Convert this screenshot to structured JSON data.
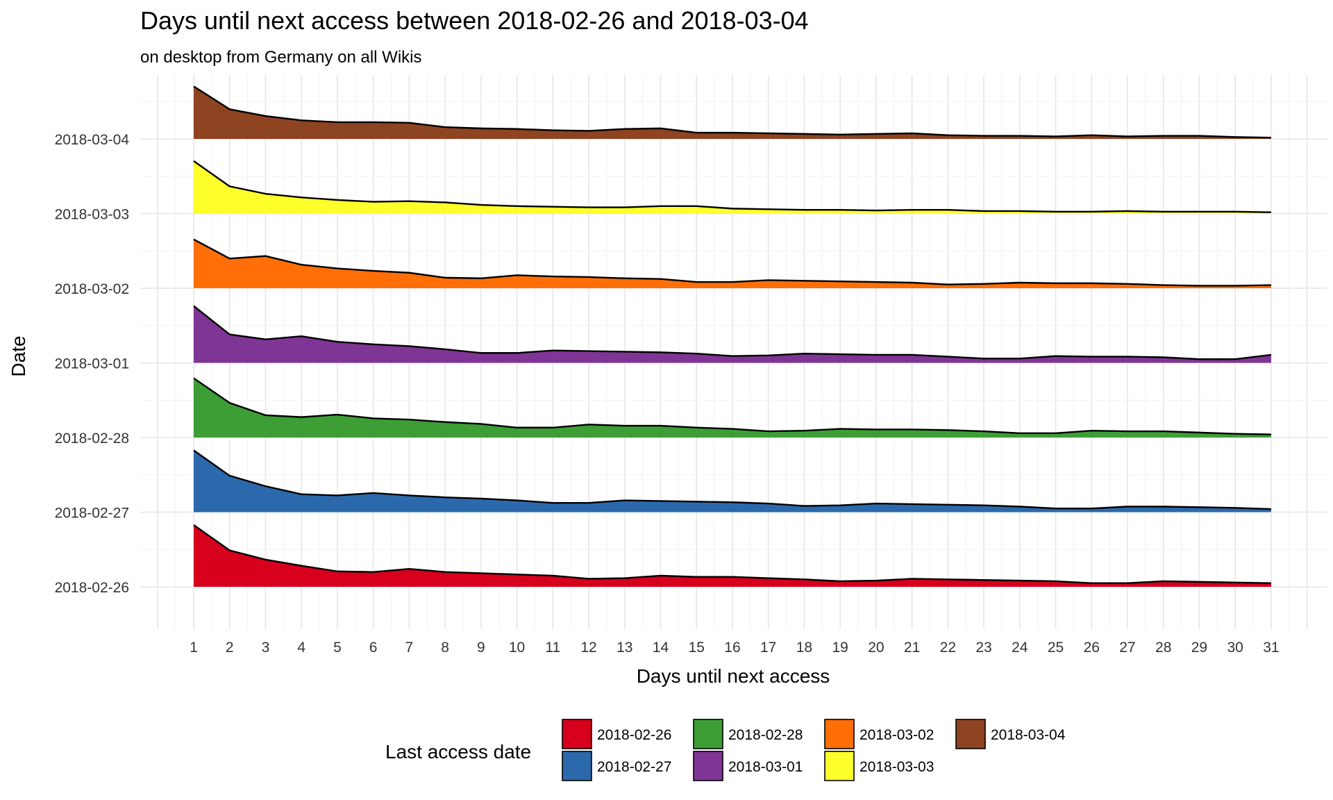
{
  "chart_data": {
    "type": "area",
    "title": "Days until next access between 2018-02-26 and 2018-03-04",
    "subtitle": "on desktop from Germany on all Wikis",
    "xlabel": "Days until next access",
    "ylabel": "Date",
    "x": [
      1,
      2,
      3,
      4,
      5,
      6,
      7,
      8,
      9,
      10,
      11,
      12,
      13,
      14,
      15,
      16,
      17,
      18,
      19,
      20,
      21,
      22,
      23,
      24,
      25,
      26,
      27,
      28,
      29,
      30,
      31
    ],
    "xlim": [
      0,
      32
    ],
    "y_categories": [
      "2018-02-26",
      "2018-02-27",
      "2018-02-28",
      "2018-03-01",
      "2018-03-02",
      "2018-03-03",
      "2018-03-04"
    ],
    "grid": true,
    "legend": {
      "title": "Last access date",
      "position": "bottom",
      "items": [
        {
          "label": "2018-02-26",
          "color": "#d7001c"
        },
        {
          "label": "2018-02-27",
          "color": "#2c69ac"
        },
        {
          "label": "2018-02-28",
          "color": "#3d9e35"
        },
        {
          "label": "2018-03-01",
          "color": "#7f3595"
        },
        {
          "label": "2018-03-02",
          "color": "#ff6e07"
        },
        {
          "label": "2018-03-03",
          "color": "#ffff2b"
        },
        {
          "label": "2018-03-04",
          "color": "#8e4321"
        }
      ]
    },
    "series": [
      {
        "name": "2018-02-26",
        "color": "#d7001c",
        "values": [
          1.0,
          0.59,
          0.44,
          0.34,
          0.25,
          0.24,
          0.29,
          0.24,
          0.22,
          0.2,
          0.18,
          0.13,
          0.14,
          0.18,
          0.16,
          0.16,
          0.14,
          0.12,
          0.09,
          0.1,
          0.13,
          0.12,
          0.11,
          0.1,
          0.09,
          0.06,
          0.06,
          0.09,
          0.08,
          0.07,
          0.06
        ]
      },
      {
        "name": "2018-02-27",
        "color": "#2c69ac",
        "values": [
          1.0,
          0.59,
          0.42,
          0.29,
          0.27,
          0.31,
          0.27,
          0.24,
          0.22,
          0.19,
          0.15,
          0.15,
          0.19,
          0.18,
          0.17,
          0.16,
          0.14,
          0.1,
          0.11,
          0.14,
          0.13,
          0.12,
          0.11,
          0.09,
          0.06,
          0.06,
          0.09,
          0.09,
          0.08,
          0.07,
          0.05
        ]
      },
      {
        "name": "2018-02-28",
        "color": "#3d9e35",
        "values": [
          0.96,
          0.56,
          0.36,
          0.33,
          0.37,
          0.31,
          0.29,
          0.25,
          0.22,
          0.16,
          0.16,
          0.21,
          0.19,
          0.19,
          0.16,
          0.14,
          0.1,
          0.11,
          0.14,
          0.13,
          0.13,
          0.12,
          0.1,
          0.07,
          0.07,
          0.11,
          0.1,
          0.1,
          0.08,
          0.06,
          0.05
        ]
      },
      {
        "name": "2018-03-01",
        "color": "#7f3595",
        "values": [
          0.92,
          0.46,
          0.38,
          0.43,
          0.34,
          0.3,
          0.27,
          0.22,
          0.16,
          0.16,
          0.2,
          0.19,
          0.18,
          0.17,
          0.15,
          0.11,
          0.12,
          0.15,
          0.14,
          0.13,
          0.13,
          0.1,
          0.07,
          0.07,
          0.11,
          0.1,
          0.1,
          0.09,
          0.06,
          0.06,
          0.13
        ]
      },
      {
        "name": "2018-03-02",
        "color": "#ff6e07",
        "values": [
          0.79,
          0.48,
          0.52,
          0.38,
          0.32,
          0.28,
          0.25,
          0.17,
          0.16,
          0.21,
          0.19,
          0.18,
          0.16,
          0.15,
          0.1,
          0.1,
          0.13,
          0.12,
          0.11,
          0.1,
          0.09,
          0.06,
          0.07,
          0.09,
          0.08,
          0.08,
          0.07,
          0.05,
          0.04,
          0.04,
          0.05
        ]
      },
      {
        "name": "2018-03-03",
        "color": "#ffff2b",
        "values": [
          0.85,
          0.44,
          0.32,
          0.26,
          0.22,
          0.19,
          0.2,
          0.18,
          0.14,
          0.12,
          0.11,
          0.1,
          0.1,
          0.12,
          0.12,
          0.08,
          0.07,
          0.06,
          0.06,
          0.05,
          0.06,
          0.06,
          0.04,
          0.04,
          0.03,
          0.03,
          0.04,
          0.03,
          0.03,
          0.03,
          0.02
        ]
      },
      {
        "name": "2018-03-04",
        "color": "#8e4321",
        "values": [
          0.85,
          0.48,
          0.37,
          0.3,
          0.27,
          0.27,
          0.26,
          0.19,
          0.17,
          0.16,
          0.14,
          0.13,
          0.16,
          0.17,
          0.1,
          0.1,
          0.09,
          0.08,
          0.07,
          0.08,
          0.09,
          0.06,
          0.05,
          0.05,
          0.04,
          0.06,
          0.04,
          0.05,
          0.05,
          0.03,
          0.02
        ]
      }
    ]
  }
}
